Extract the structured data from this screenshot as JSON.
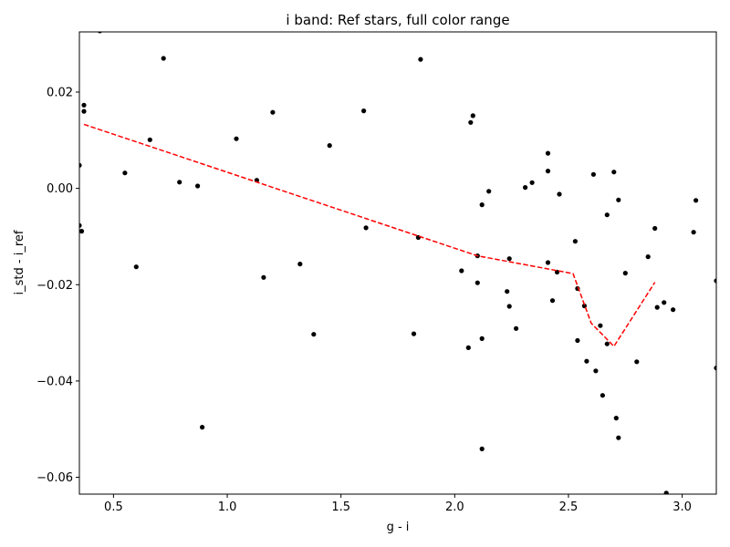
{
  "chart_data": {
    "type": "scatter",
    "title": "i band: Ref stars, full color range",
    "xlabel": "g - i",
    "ylabel": "i_std - i_ref",
    "xlim": [
      0.35,
      3.15
    ],
    "ylim": [
      -0.0635,
      0.0325
    ],
    "x_ticks": [
      0.5,
      1.0,
      1.5,
      2.0,
      2.5,
      3.0
    ],
    "x_tick_labels": [
      "0.5",
      "1.0",
      "1.5",
      "2.0",
      "2.5",
      "3.0"
    ],
    "y_ticks": [
      0.02,
      0.0,
      -0.02,
      -0.04,
      -0.06
    ],
    "y_tick_labels": [
      "0.02",
      "0.00",
      "−0.02",
      "−0.04",
      "−0.06"
    ],
    "grid": false,
    "series": [
      {
        "kind": "scatter",
        "color": "#000000",
        "points": [
          [
            0.44,
            0.0327
          ],
          [
            0.37,
            0.0173
          ],
          [
            0.37,
            0.016
          ],
          [
            0.35,
            0.0048
          ],
          [
            0.35,
            -0.0077
          ],
          [
            0.36,
            -0.0089
          ],
          [
            0.55,
            0.0032
          ],
          [
            0.6,
            -0.0163
          ],
          [
            0.66,
            0.0101
          ],
          [
            0.72,
            0.027
          ],
          [
            0.79,
            0.0013
          ],
          [
            0.87,
            0.0005
          ],
          [
            0.89,
            -0.0496
          ],
          [
            1.04,
            0.0103
          ],
          [
            1.13,
            0.0017
          ],
          [
            1.16,
            -0.0185
          ],
          [
            1.2,
            0.0158
          ],
          [
            1.32,
            -0.0157
          ],
          [
            1.38,
            -0.0303
          ],
          [
            1.45,
            0.0089
          ],
          [
            1.6,
            0.0161
          ],
          [
            1.61,
            -0.0082
          ],
          [
            1.82,
            -0.0302
          ],
          [
            1.84,
            -0.0102
          ],
          [
            1.85,
            0.0268
          ],
          [
            2.03,
            -0.0171
          ],
          [
            2.06,
            -0.0331
          ],
          [
            2.07,
            0.0137
          ],
          [
            2.08,
            0.0151
          ],
          [
            2.1,
            -0.0196
          ],
          [
            2.1,
            -0.014
          ],
          [
            2.12,
            -0.0034
          ],
          [
            2.12,
            -0.0312
          ],
          [
            2.12,
            -0.0541
          ],
          [
            2.15,
            -0.0006
          ],
          [
            2.23,
            -0.0214
          ],
          [
            2.24,
            -0.0245
          ],
          [
            2.24,
            -0.0146
          ],
          [
            2.27,
            -0.0291
          ],
          [
            2.31,
            0.0002
          ],
          [
            2.34,
            0.0012
          ],
          [
            2.41,
            0.0073
          ],
          [
            2.41,
            0.0036
          ],
          [
            2.41,
            -0.0154
          ],
          [
            2.43,
            -0.0233
          ],
          [
            2.45,
            -0.0174
          ],
          [
            2.46,
            -0.0012
          ],
          [
            2.53,
            -0.011
          ],
          [
            2.54,
            -0.0316
          ],
          [
            2.54,
            -0.0208
          ],
          [
            2.57,
            -0.0244
          ],
          [
            2.58,
            -0.0359
          ],
          [
            2.61,
            0.0029
          ],
          [
            2.62,
            -0.0379
          ],
          [
            2.64,
            -0.0285
          ],
          [
            2.65,
            -0.043
          ],
          [
            2.67,
            -0.0055
          ],
          [
            2.67,
            -0.0323
          ],
          [
            2.7,
            0.0034
          ],
          [
            2.71,
            -0.0477
          ],
          [
            2.72,
            -0.0024
          ],
          [
            2.72,
            -0.0518
          ],
          [
            2.75,
            -0.0176
          ],
          [
            2.8,
            -0.036
          ],
          [
            2.85,
            -0.0142
          ],
          [
            2.88,
            -0.0083
          ],
          [
            2.89,
            -0.0247
          ],
          [
            2.92,
            -0.0237
          ],
          [
            2.93,
            -0.0633
          ],
          [
            2.96,
            -0.0252
          ],
          [
            3.05,
            -0.0091
          ],
          [
            3.06,
            -0.0025
          ],
          [
            3.15,
            -0.0192
          ],
          [
            3.15,
            -0.0373
          ]
        ]
      },
      {
        "kind": "line",
        "style": "dashed",
        "color": "#ff0000",
        "points": [
          [
            0.37,
            0.0133
          ],
          [
            2.1,
            -0.014
          ],
          [
            2.52,
            -0.0177
          ],
          [
            2.6,
            -0.028
          ],
          [
            2.7,
            -0.0328
          ],
          [
            2.88,
            -0.0195
          ]
        ]
      }
    ]
  }
}
